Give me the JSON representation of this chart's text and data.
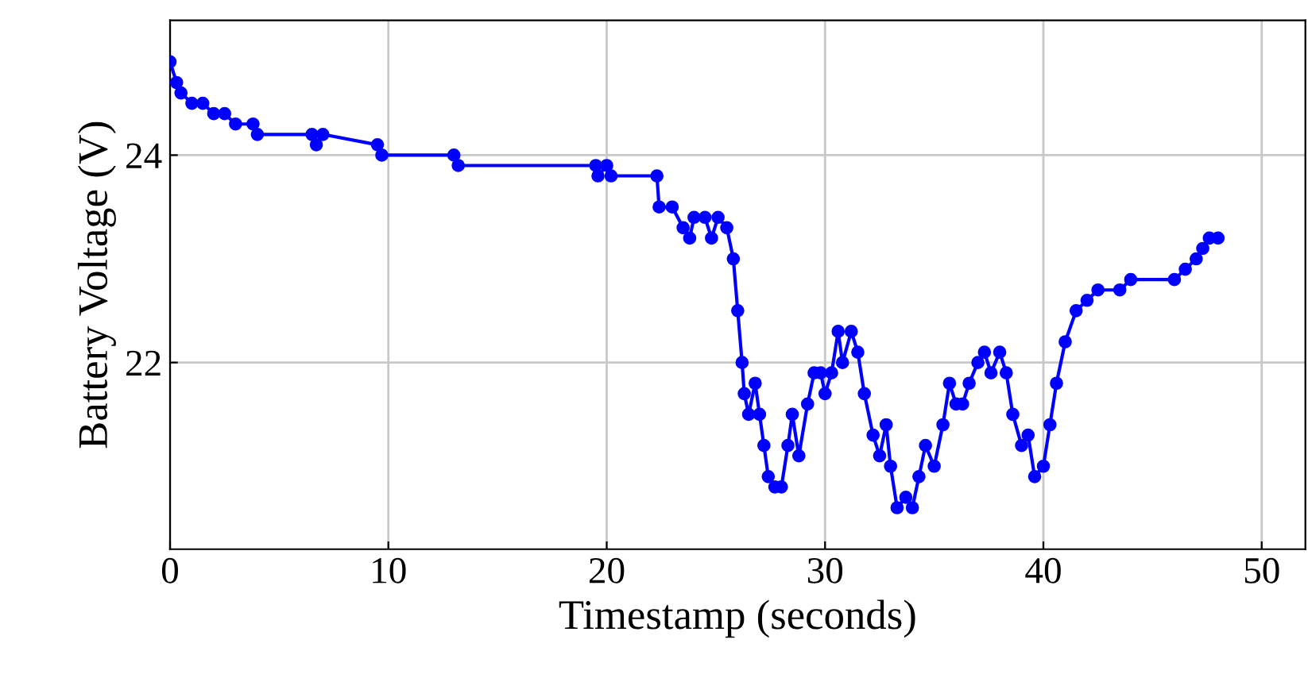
{
  "chart_data": {
    "type": "line",
    "xlabel": "Timestamp (seconds)",
    "ylabel": "Battery Voltage (V)",
    "xlim": [
      0,
      52
    ],
    "ylim": [
      20.2,
      25.3
    ],
    "xticks": [
      0,
      10,
      20,
      30,
      40,
      50
    ],
    "yticks": [
      22,
      24
    ],
    "grid": true,
    "marker": "circle",
    "line_style": "solid",
    "series": [
      {
        "color": "#0000ff",
        "x": [
          0,
          0.3,
          0.5,
          1,
          1.5,
          2,
          2.5,
          3,
          3.8,
          4,
          6.5,
          6.7,
          7,
          9.5,
          9.7,
          13,
          13.2,
          19.5,
          19.6,
          20,
          20.2,
          22.3,
          22.4,
          23,
          23.5,
          23.8,
          24,
          24.5,
          24.8,
          25.1,
          25.5,
          25.8,
          26,
          26.2,
          26.3,
          26.5,
          26.8,
          27,
          27.2,
          27.4,
          27.7,
          28,
          28.3,
          28.5,
          28.8,
          29.2,
          29.5,
          29.8,
          30,
          30.3,
          30.6,
          30.8,
          31.2,
          31.5,
          31.8,
          32.2,
          32.5,
          32.8,
          33,
          33.3,
          33.7,
          34,
          34.3,
          34.6,
          35,
          35.4,
          35.7,
          36,
          36.3,
          36.6,
          37,
          37.3,
          37.6,
          38,
          38.3,
          38.6,
          39,
          39.3,
          39.6,
          40,
          40.3,
          40.6,
          41,
          41.5,
          42,
          42.5,
          43.5,
          44,
          46,
          46.5,
          47,
          47.3,
          47.6,
          48
        ],
        "values": [
          24.9,
          24.7,
          24.6,
          24.5,
          24.5,
          24.4,
          24.4,
          24.3,
          24.3,
          24.2,
          24.2,
          24.1,
          24.2,
          24.1,
          24.0,
          24.0,
          23.9,
          23.9,
          23.8,
          23.9,
          23.8,
          23.8,
          23.5,
          23.5,
          23.3,
          23.2,
          23.4,
          23.4,
          23.2,
          23.4,
          23.3,
          23.0,
          22.5,
          22.0,
          21.7,
          21.5,
          21.8,
          21.5,
          21.2,
          20.9,
          20.8,
          20.8,
          21.2,
          21.5,
          21.1,
          21.6,
          21.9,
          21.9,
          21.7,
          21.9,
          22.3,
          22.0,
          22.3,
          22.1,
          21.7,
          21.3,
          21.1,
          21.4,
          21.0,
          20.6,
          20.7,
          20.6,
          20.9,
          21.2,
          21.0,
          21.4,
          21.8,
          21.6,
          21.6,
          21.8,
          22.0,
          22.1,
          21.9,
          22.1,
          21.9,
          21.5,
          21.2,
          21.3,
          20.9,
          21.0,
          21.4,
          21.8,
          22.2,
          22.5,
          22.6,
          22.7,
          22.7,
          22.8,
          22.8,
          22.9,
          23.0,
          23.1,
          23.2,
          23.2
        ]
      }
    ]
  }
}
